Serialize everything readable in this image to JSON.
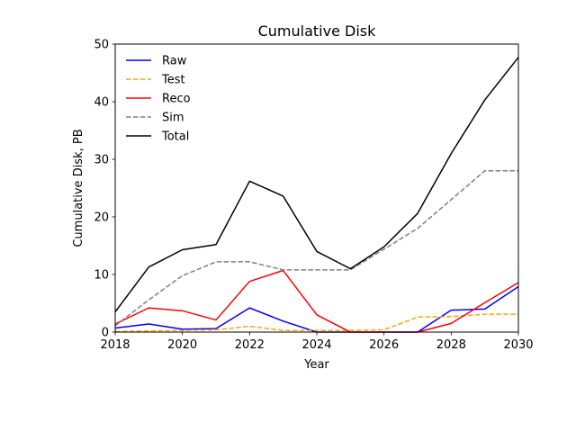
{
  "chart_data": {
    "type": "line",
    "title": "Cumulative Disk",
    "xlabel": "Year",
    "ylabel": "Cumulative Disk, PB",
    "xlim": [
      2018,
      2030
    ],
    "ylim": [
      0,
      50
    ],
    "xticks": [
      2018,
      2020,
      2022,
      2024,
      2026,
      2028,
      2030
    ],
    "yticks": [
      0,
      10,
      20,
      30,
      40,
      50
    ],
    "grid": false,
    "legend_position": "upper-left",
    "x": [
      2018,
      2019,
      2020,
      2021,
      2022,
      2023,
      2024,
      2025,
      2026,
      2027,
      2028,
      2029,
      2030
    ],
    "series": [
      {
        "name": "Raw",
        "color": "#0000ff",
        "dash": "solid",
        "values": [
          0.7,
          1.4,
          0.5,
          0.6,
          4.2,
          1.9,
          0.0,
          0.0,
          0.0,
          0.0,
          3.8,
          4.0,
          7.9
        ]
      },
      {
        "name": "Test",
        "color": "#ffa500",
        "dash": "dashed",
        "values": [
          0.1,
          0.2,
          0.3,
          0.4,
          1.0,
          0.3,
          0.3,
          0.3,
          0.4,
          2.6,
          2.7,
          3.1,
          3.1
        ]
      },
      {
        "name": "Reco",
        "color": "#ff0000",
        "dash": "solid",
        "values": [
          1.4,
          4.2,
          3.7,
          2.1,
          8.8,
          10.7,
          3.0,
          0.0,
          0.0,
          0.0,
          1.5,
          5.1,
          8.6
        ]
      },
      {
        "name": "Sim",
        "color": "#808080",
        "dash": "dashed",
        "values": [
          1.1,
          5.6,
          9.8,
          12.2,
          12.2,
          10.8,
          10.8,
          10.8,
          14.4,
          18.0,
          23.0,
          28.0,
          28.0
        ]
      },
      {
        "name": "Total",
        "color": "#000000",
        "dash": "solid",
        "values": [
          3.5,
          11.3,
          14.3,
          15.2,
          26.2,
          23.6,
          14.0,
          11.0,
          14.8,
          20.6,
          31.0,
          40.3,
          47.7
        ]
      }
    ]
  }
}
